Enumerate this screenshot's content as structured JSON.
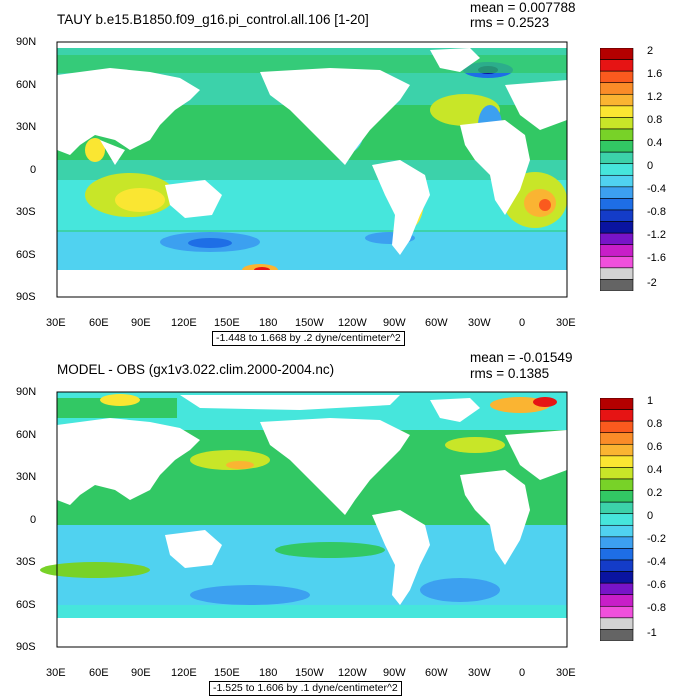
{
  "panels": [
    {
      "title": "TAUY b.e15.B1850.f09_g16.pi_control.all.106 [1-20]",
      "mean": "mean = 0.007788",
      "rms": "rms = 0.2523",
      "range": "-1.448 to 1.668 by .2 dyne/centimeter^2",
      "lat_labels": [
        "90N",
        "60N",
        "30N",
        "0",
        "30S",
        "60S",
        "90S"
      ],
      "lon_labels": [
        "30E",
        "60E",
        "90E",
        "120E",
        "150E",
        "180",
        "150W",
        "120W",
        "90W",
        "60W",
        "30W",
        "0",
        "30E"
      ],
      "colorbar": {
        "labels": [
          "2",
          "1.6",
          "1.2",
          "0.8",
          "0.4",
          "0",
          "-0.4",
          "-0.8",
          "-1.2",
          "-1.6",
          "-2"
        ],
        "colors": [
          "#b40000",
          "#e61414",
          "#fa5a1e",
          "#fa8c28",
          "#fab432",
          "#fae632",
          "#c8e628",
          "#78d228",
          "#32c864",
          "#3cd2aa",
          "#46e6dc",
          "#50d2f0",
          "#3ca0f0",
          "#1e6ee6",
          "#143cc8",
          "#0a14a0",
          "#7814c8",
          "#c81ec8",
          "#f050dc",
          "#d2d2d2",
          "#646464"
        ]
      }
    },
    {
      "title": "MODEL - OBS (gx1v3.022.clim.2000-2004.nc)",
      "mean": "mean = -0.01549",
      "rms": "rms = 0.1385",
      "range": "-1.525 to 1.606 by .1 dyne/centimeter^2",
      "lat_labels": [
        "90N",
        "60N",
        "30N",
        "0",
        "30S",
        "60S",
        "90S"
      ],
      "lon_labels": [
        "30E",
        "60E",
        "90E",
        "120E",
        "150E",
        "180",
        "150W",
        "120W",
        "90W",
        "60W",
        "30W",
        "0",
        "30E"
      ],
      "colorbar": {
        "labels": [
          "1",
          "0.8",
          "0.6",
          "0.4",
          "0.2",
          "0",
          "-0.2",
          "-0.4",
          "-0.6",
          "-0.8",
          "-1"
        ],
        "colors": [
          "#b40000",
          "#e61414",
          "#fa5a1e",
          "#fa8c28",
          "#fab432",
          "#fae632",
          "#c8e628",
          "#78d228",
          "#32c864",
          "#3cd2aa",
          "#46e6dc",
          "#50d2f0",
          "#3ca0f0",
          "#1e6ee6",
          "#143cc8",
          "#0a14a0",
          "#7814c8",
          "#c81ec8",
          "#f050dc",
          "#d2d2d2",
          "#646464"
        ]
      }
    }
  ]
}
